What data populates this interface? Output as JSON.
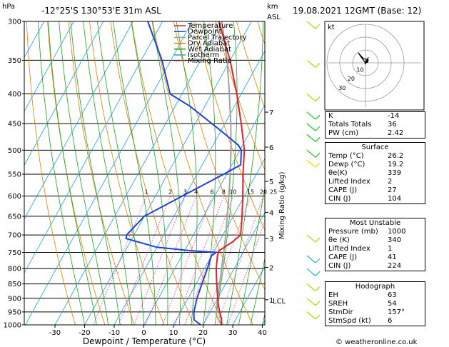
{
  "header": {
    "hpa_label": "hPa",
    "location": "-12°25'S  130°53'E  31m  ASL",
    "km_label": "km",
    "asl_label": "ASL",
    "datetime": "19.08.2021  12GMT  (Base: 12)"
  },
  "footer": {
    "credit": "© weatheronline.co.uk"
  },
  "chart_data": {
    "type": "line",
    "title": "",
    "xlabel": "Dewpoint / Temperature (°C)",
    "ylabel": "hPa",
    "mixing_ratio_label": "Mixing Ratio (g/kg)",
    "x_ticks": [
      "-30",
      "-20",
      "-10",
      "0",
      "10",
      "20",
      "30",
      "40"
    ],
    "pressure_ticks": [
      "300",
      "350",
      "400",
      "450",
      "500",
      "550",
      "600",
      "650",
      "700",
      "750",
      "800",
      "850",
      "900",
      "950",
      "1000"
    ],
    "km_ticks": [
      {
        "label": "7",
        "p": 430
      },
      {
        "label": "6",
        "p": 494
      },
      {
        "label": "5",
        "p": 566
      },
      {
        "label": "4",
        "p": 640
      },
      {
        "label": "3",
        "p": 710
      },
      {
        "label": "2",
        "p": 796
      },
      {
        "label": "1",
        "p": 905
      }
    ],
    "lcl_label": "LCL",
    "mixing_ratio_values": [
      "1",
      "2",
      "3",
      "4",
      "6",
      "8",
      "10",
      "15",
      "20",
      "25"
    ],
    "legend": [
      {
        "name": "Temperature",
        "color": "#e0202a"
      },
      {
        "name": "Dewpoint",
        "color": "#2040d8"
      },
      {
        "name": "Parcel Trajectory",
        "color": "#a0a0a0"
      },
      {
        "name": "Dry Adiabat",
        "color": "#e08000"
      },
      {
        "name": "Wet Adiabat",
        "color": "#20a020"
      },
      {
        "name": "Isotherm",
        "color": "#20a0e0"
      },
      {
        "name": "Mixing Ratio",
        "color": "#e0309a"
      }
    ],
    "series": [
      {
        "name": "Temperature",
        "points": [
          [
            1000,
            26.2
          ],
          [
            975,
            25.0
          ],
          [
            950,
            23.2
          ],
          [
            925,
            21.5
          ],
          [
            900,
            20.0
          ],
          [
            850,
            17.0
          ],
          [
            800,
            14.0
          ],
          [
            760,
            12.0
          ],
          [
            745,
            11.6
          ],
          [
            720,
            14.5
          ],
          [
            700,
            16.0
          ],
          [
            650,
            13.0
          ],
          [
            600,
            9.5
          ],
          [
            550,
            5.5
          ],
          [
            500,
            1.5
          ],
          [
            450,
            -4.5
          ],
          [
            400,
            -11.5
          ],
          [
            350,
            -20.0
          ],
          [
            300,
            -31.0
          ]
        ]
      },
      {
        "name": "Dewpoint",
        "points": [
          [
            1000,
            19.2
          ],
          [
            980,
            16.0
          ],
          [
            950,
            14.5
          ],
          [
            900,
            13.0
          ],
          [
            850,
            12.0
          ],
          [
            800,
            11.0
          ],
          [
            760,
            10.0
          ],
          [
            750,
            11.0
          ],
          [
            745,
            2.0
          ],
          [
            735,
            -10.0
          ],
          [
            710,
            -22.0
          ],
          [
            700,
            -22.5
          ],
          [
            650,
            -20.0
          ],
          [
            600,
            -11.0
          ],
          [
            550,
            -1.0
          ],
          [
            530,
            3.0
          ],
          [
            500,
            0.5
          ],
          [
            490,
            -1.5
          ],
          [
            460,
            -11.0
          ],
          [
            420,
            -25.0
          ],
          [
            400,
            -34.0
          ],
          [
            350,
            -43.0
          ],
          [
            300,
            -55.0
          ]
        ]
      },
      {
        "name": "Parcel Trajectory",
        "points": [
          [
            1000,
            26.2
          ],
          [
            960,
            22.5
          ],
          [
            920,
            20.8
          ],
          [
            900,
            20.0
          ],
          [
            850,
            18.0
          ],
          [
            800,
            15.8
          ],
          [
            750,
            13.5
          ],
          [
            700,
            11.0
          ],
          [
            650,
            8.0
          ],
          [
            600,
            4.8
          ],
          [
            550,
            1.2
          ],
          [
            500,
            -3.0
          ],
          [
            450,
            -8.0
          ],
          [
            400,
            -14.0
          ],
          [
            350,
            -21.0
          ],
          [
            300,
            -30.0
          ]
        ]
      }
    ],
    "x_range": [
      -35,
      40
    ],
    "y_range": [
      300,
      1000
    ],
    "y_scale": "log",
    "skew": true
  },
  "hodograph": {
    "unit_label": "kt",
    "ring_labels": [
      "10",
      "20",
      "30"
    ]
  },
  "indices": {
    "rows": [
      {
        "label": "K",
        "value": "-14"
      },
      {
        "label": "Totals Totals",
        "value": "36"
      },
      {
        "label": "PW (cm)",
        "value": "2.42"
      }
    ],
    "surface": {
      "title": "Surface",
      "rows": [
        {
          "label": "Temp (°C)",
          "value": "26.2"
        },
        {
          "label": "Dewp (°C)",
          "value": "19.2"
        },
        {
          "label": "θe(K)",
          "value": "339"
        },
        {
          "label": "Lifted Index",
          "value": "2"
        },
        {
          "label": "CAPE (J)",
          "value": "27"
        },
        {
          "label": "CIN (J)",
          "value": "104"
        }
      ]
    },
    "most_unstable": {
      "title": "Most Unstable",
      "rows": [
        {
          "label": "Pressure (mb)",
          "value": "1000"
        },
        {
          "label": "θe (K)",
          "value": "340"
        },
        {
          "label": "Lifted Index",
          "value": "1"
        },
        {
          "label": "CAPE (J)",
          "value": "41"
        },
        {
          "label": "CIN (J)",
          "value": "224"
        }
      ]
    },
    "hodograph_box": {
      "title": "Hodograph",
      "rows": [
        {
          "label": "EH",
          "value": "63"
        },
        {
          "label": "SREH",
          "value": "54"
        },
        {
          "label": "StmDir",
          "value": "157°"
        },
        {
          "label": "StmSpd (kt)",
          "value": "6"
        }
      ]
    }
  }
}
